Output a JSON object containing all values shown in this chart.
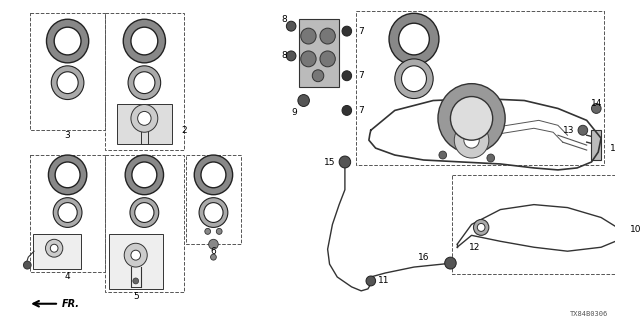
{
  "bg_color": "#ffffff",
  "watermark": "TX84B0306",
  "diagram_color": "#222222"
}
